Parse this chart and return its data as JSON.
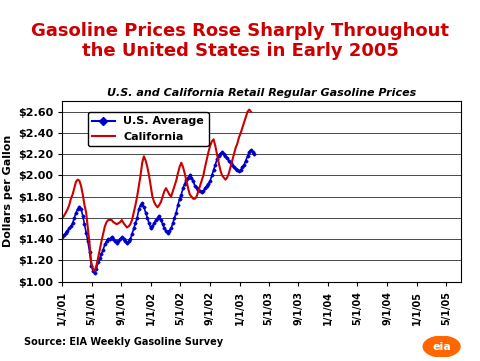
{
  "title": "Gasoline Prices Rose Sharply Throughout\nthe United States in Early 2005",
  "subtitle": "U.S. and California Retail Regular Gasoline Prices",
  "ylabel": "Dollars per Gallon",
  "source": "Source: EIA Weekly Gasoline Survey",
  "ylim": [
    1.0,
    2.7
  ],
  "yticks": [
    1.0,
    1.2,
    1.4,
    1.6,
    1.8,
    2.0,
    2.2,
    2.4,
    2.6
  ],
  "ytick_labels": [
    "$1.00",
    "$1.20",
    "$1.40",
    "$1.60",
    "$1.80",
    "$2.00",
    "$2.20",
    "$2.40",
    "$2.60"
  ],
  "title_color": "#CC0000",
  "title_fontsize": 14,
  "subtitle_fontsize": 9,
  "us_color": "#0000CC",
  "ca_color": "#CC0000",
  "background_color": "#FFFFFF",
  "plot_bg_color": "#FFFFFF",
  "us_label": "U.S. Average",
  "ca_label": "California",
  "xtick_labels": [
    "1/1/01",
    "5/1/01",
    "9/1/01",
    "1/1/02",
    "5/1/02",
    "9/1/02",
    "1/1/03",
    "5/1/03",
    "9/1/03",
    "1/1/04",
    "5/1/04",
    "9/1/04",
    "1/1/05",
    "5/1/05"
  ],
  "us_data": [
    1.42,
    1.44,
    1.46,
    1.48,
    1.5,
    1.52,
    1.55,
    1.6,
    1.65,
    1.68,
    1.7,
    1.68,
    1.62,
    1.54,
    1.46,
    1.38,
    1.28,
    1.15,
    1.1,
    1.08,
    1.12,
    1.18,
    1.22,
    1.26,
    1.3,
    1.35,
    1.38,
    1.4,
    1.4,
    1.42,
    1.4,
    1.38,
    1.36,
    1.38,
    1.4,
    1.42,
    1.4,
    1.38,
    1.36,
    1.38,
    1.4,
    1.45,
    1.5,
    1.55,
    1.6,
    1.68,
    1.72,
    1.74,
    1.7,
    1.65,
    1.6,
    1.55,
    1.5,
    1.52,
    1.55,
    1.58,
    1.6,
    1.62,
    1.58,
    1.54,
    1.5,
    1.48,
    1.46,
    1.48,
    1.5,
    1.55,
    1.6,
    1.65,
    1.72,
    1.78,
    1.82,
    1.88,
    1.92,
    1.96,
    1.98,
    2.0,
    1.98,
    1.95,
    1.9,
    1.88,
    1.86,
    1.85,
    1.84,
    1.85,
    1.88,
    1.9,
    1.92,
    1.95,
    2.0,
    2.05,
    2.1,
    2.15,
    2.18,
    2.2,
    2.22,
    2.2,
    2.18,
    2.16,
    2.14,
    2.12,
    2.1,
    2.08,
    2.06,
    2.05,
    2.04,
    2.05,
    2.08,
    2.1,
    2.14,
    2.18,
    2.22,
    2.24,
    2.22,
    2.2
  ],
  "ca_data": [
    1.6,
    1.62,
    1.65,
    1.68,
    1.72,
    1.78,
    1.82,
    1.88,
    1.94,
    1.96,
    1.95,
    1.9,
    1.82,
    1.72,
    1.65,
    1.5,
    1.35,
    1.18,
    1.12,
    1.1,
    1.15,
    1.22,
    1.3,
    1.38,
    1.45,
    1.52,
    1.56,
    1.58,
    1.58,
    1.58,
    1.56,
    1.55,
    1.54,
    1.55,
    1.56,
    1.58,
    1.55,
    1.53,
    1.51,
    1.52,
    1.54,
    1.58,
    1.65,
    1.72,
    1.8,
    1.9,
    2.0,
    2.12,
    2.18,
    2.14,
    2.08,
    2.0,
    1.9,
    1.8,
    1.75,
    1.72,
    1.7,
    1.72,
    1.75,
    1.8,
    1.85,
    1.88,
    1.85,
    1.82,
    1.8,
    1.85,
    1.9,
    1.95,
    2.02,
    2.08,
    2.12,
    2.08,
    2.02,
    1.95,
    1.88,
    1.82,
    1.8,
    1.78,
    1.78,
    1.8,
    1.85,
    1.9,
    1.95,
    2.0,
    2.08,
    2.15,
    2.22,
    2.28,
    2.32,
    2.34,
    2.28,
    2.2,
    2.12,
    2.05,
    2.0,
    1.98,
    1.96,
    1.98,
    2.02,
    2.08,
    2.14,
    2.2,
    2.26,
    2.3,
    2.36,
    2.4,
    2.45,
    2.5,
    2.55,
    2.6,
    2.62,
    2.6
  ]
}
